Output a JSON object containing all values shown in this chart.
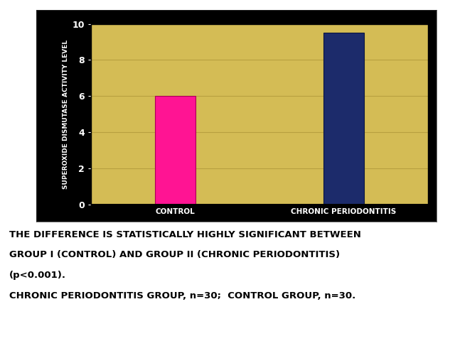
{
  "categories": [
    "CONTROL",
    "CHRONIC PERIODONTITIS"
  ],
  "values": [
    6.0,
    9.5
  ],
  "bar_colors": [
    "#FF1493",
    "#1C2B6B"
  ],
  "plot_bg_color": "#D4BC55",
  "outer_bg_color": "#000000",
  "ylabel": "SUPEROXIDE DISMUTASE ACTIVITY LEVEL",
  "ylim": [
    0,
    10
  ],
  "yticks": [
    0,
    2,
    4,
    6,
    8,
    10
  ],
  "tick_color": "#FFFFFF",
  "label_color": "#FFFFFF",
  "grid_color": "#B8A040",
  "annotation_lines": [
    "THE DIFFERENCE IS STATISTICALLY HIGHLY SIGNIFICANT BETWEEN",
    "GROUP I (CONTROL) AND GROUP II (CHRONIC PERIODONTITIS)",
    "(p<0.001).",
    "CHRONIC PERIODONTITIS GROUP, n=30;  CONTROL GROUP, n=30."
  ],
  "ann_fontsize": 9.5,
  "bar_width": 0.12,
  "x_positions": [
    0.25,
    0.75
  ]
}
